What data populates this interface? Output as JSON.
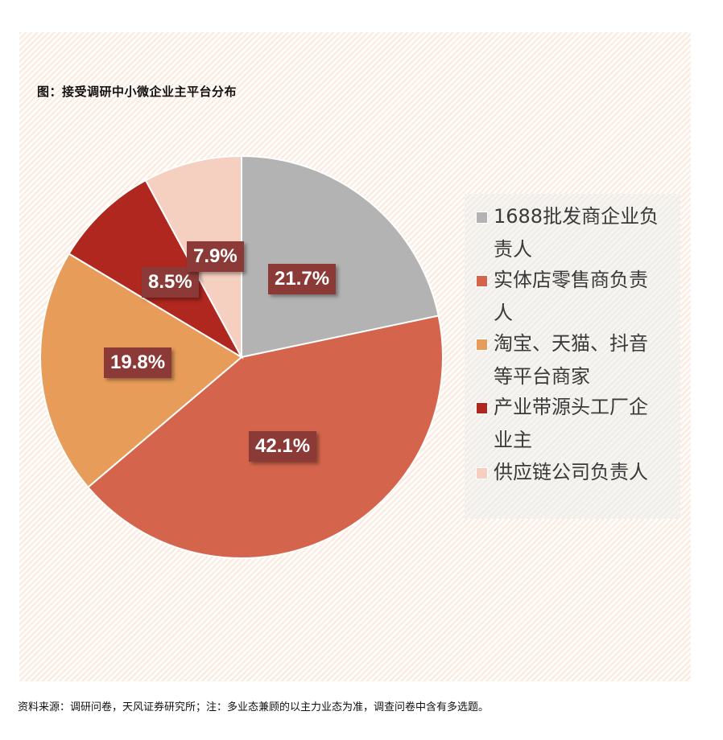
{
  "title": "图：接受调研中小微企业主平台分布",
  "source": "资料来源：调研问卷，天风证券研究所；注：多业态兼顾的以主力业态为准，调查问卷中含有多选题。",
  "colors": {
    "slice_1688": "#b3b3b3",
    "slice_retail": "#d4654c",
    "slice_platform": "#e89c5a",
    "slice_factory": "#b0271f",
    "slice_supply": "#f5cfc0",
    "label_bg": "#8b3a38"
  },
  "legend": {
    "items": [
      {
        "line1": "1688批发商企业负",
        "line2": "责人",
        "color": "#b3b3b3"
      },
      {
        "line1": "实体店零售商负责",
        "line2": "人",
        "color": "#d4654c"
      },
      {
        "line1": "淘宝、天猫、抖音",
        "line2": "等平台商家",
        "color": "#e89c5a"
      },
      {
        "line1": "产业带源头工厂企",
        "line2": "业主",
        "color": "#b0271f"
      },
      {
        "line1": "供应链公司负责人",
        "line2": "",
        "color": "#f5cfc0"
      }
    ]
  },
  "labels": {
    "l1688": "21.7%",
    "retail": "42.1%",
    "platform": "19.8%",
    "factory": "8.5%",
    "supply": "7.9%"
  },
  "chart_data": {
    "type": "pie",
    "title": "图：接受调研中小微企业主平台分布",
    "categories": [
      "1688批发商企业负责人",
      "实体店零售商负责人",
      "淘宝、天猫、抖音等平台商家",
      "产业带源头工厂企业主",
      "供应链公司负责人"
    ],
    "values": [
      21.7,
      42.1,
      19.8,
      8.5,
      7.9
    ],
    "unit": "%",
    "colors": [
      "#b3b3b3",
      "#d4654c",
      "#e89c5a",
      "#b0271f",
      "#f5cfc0"
    ],
    "start_angle": "12 o'clock, clockwise",
    "legend_position": "right",
    "source": "资料来源：调研问卷，天风证券研究所；注：多业态兼顾的以主力业态为准，调查问卷中含有多选题。"
  }
}
